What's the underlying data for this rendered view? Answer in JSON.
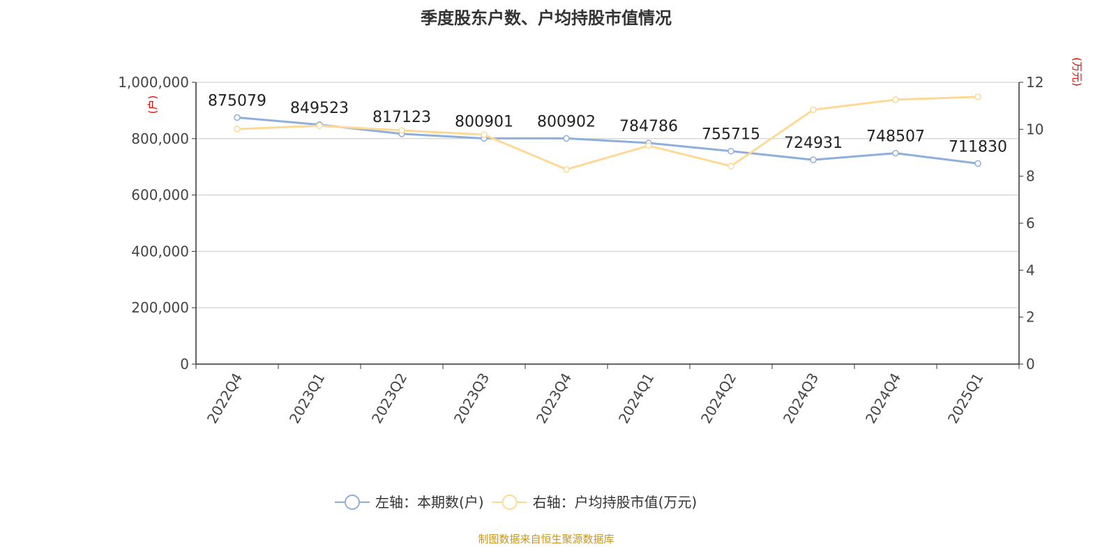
{
  "chart_data": {
    "type": "line",
    "title": "季度股东户数、户均持股市值情况",
    "categories": [
      "2022Q4",
      "2023Q1",
      "2023Q2",
      "2023Q3",
      "2023Q4",
      "2024Q1",
      "2024Q2",
      "2024Q3",
      "2024Q4",
      "2025Q1"
    ],
    "series": [
      {
        "name": "左轴：本期数(户)",
        "axis": "left",
        "color": "#8eaedb",
        "values": [
          875079,
          849523,
          817123,
          800901,
          800902,
          784786,
          755715,
          724931,
          748507,
          711830
        ],
        "labels": [
          "875079",
          "849523",
          "817123",
          "800901",
          "800902",
          "784786",
          "755715",
          "724931",
          "748507",
          "711830"
        ]
      },
      {
        "name": "右轴：户均持股市值(万元)",
        "axis": "right",
        "color": "#fdd995",
        "values": [
          10.01,
          10.15,
          9.95,
          9.77,
          8.29,
          9.3,
          8.43,
          10.83,
          11.26,
          11.38
        ]
      }
    ],
    "left_axis": {
      "label": "(户)",
      "range": [
        0,
        1000000
      ],
      "ticks": [
        0,
        200000,
        400000,
        600000,
        800000,
        1000000
      ],
      "tick_labels": [
        "0",
        "200,000",
        "400,000",
        "600,000",
        "800,000",
        "1,000,000"
      ]
    },
    "right_axis": {
      "label": "(万元)",
      "range": [
        0,
        12
      ],
      "ticks": [
        0,
        2,
        4,
        6,
        8,
        10,
        12
      ],
      "tick_labels": [
        "0",
        "2",
        "4",
        "6",
        "8",
        "10",
        "12"
      ]
    },
    "legend_position": "bottom",
    "grid": true
  },
  "source": "制图数据来自恒生聚源数据库"
}
